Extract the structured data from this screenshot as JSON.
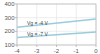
{
  "chart_data": {
    "type": "line",
    "x": [
      -4,
      0
    ],
    "series": [
      {
        "color": "#99ccdd",
        "values": [
          230,
          290
        ]
      },
      {
        "color": "#99ccdd",
        "values": [
          155,
          195
        ]
      }
    ],
    "xlim": [
      -4,
      0
    ],
    "ylim": [
      100,
      400
    ],
    "xticks": [
      -4,
      -3,
      -2,
      -1,
      0
    ],
    "yticks": [
      100,
      200,
      300,
      400
    ],
    "grid": true,
    "annotations": [
      {
        "text": "Vg = -4 V",
        "x": -3.5,
        "y": 245,
        "color": "#444444"
      },
      {
        "text": "Vg = -7 V",
        "x": -3.5,
        "y": 163,
        "color": "#444444"
      }
    ]
  }
}
